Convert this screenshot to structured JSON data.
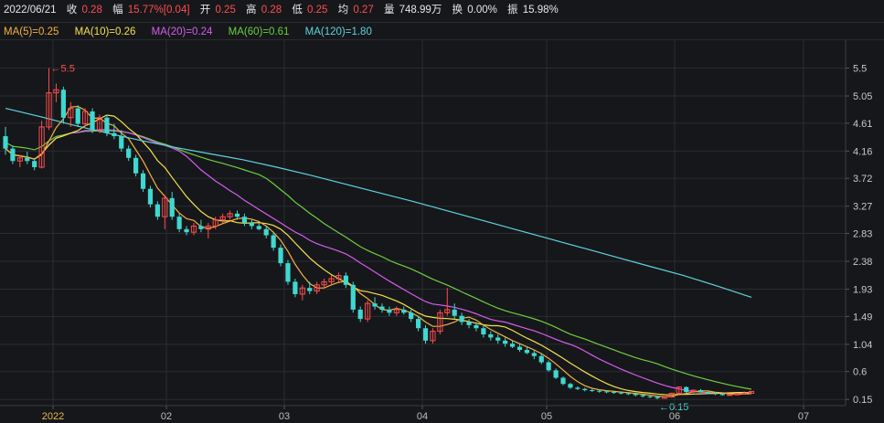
{
  "header": {
    "date": "2022/06/21",
    "close_label": "收",
    "close": "0.28",
    "change_label": "幅",
    "change": "15.77%[0.04]",
    "open_label": "开",
    "open": "0.25",
    "high_label": "高",
    "high": "0.28",
    "low_label": "低",
    "low": "0.25",
    "avg_label": "均",
    "avg": "0.27",
    "volume_label": "量",
    "volume": "748.99万",
    "turnover_label": "换",
    "turnover": "0.00%",
    "amplitude_label": "振",
    "amplitude": "15.98%"
  },
  "ma_legend": [
    {
      "label": "MA(5)=0.25",
      "color": "#f5b041"
    },
    {
      "label": "MA(10)=0.26",
      "color": "#f4e04d"
    },
    {
      "label": "MA(20)=0.24",
      "color": "#d65cf0"
    },
    {
      "label": "MA(60)=0.61",
      "color": "#6ccf3f"
    },
    {
      "label": "MA(120)=1.80",
      "color": "#5fd3e0"
    }
  ],
  "colors": {
    "up": "#ff4d4f",
    "down": "#3fd8d0",
    "grid": "#2a2c31",
    "axis_text": "#c8c8c8",
    "month_label_year": "#e8b84a",
    "month_label": "#bdbdbd"
  },
  "chart_data": {
    "type": "candlestick",
    "y_ticks": [
      "5.5",
      "5.05",
      "4.61",
      "4.16",
      "3.72",
      "3.27",
      "2.83",
      "2.38",
      "1.93",
      "1.49",
      "1.04",
      "0.6",
      "0.15"
    ],
    "ylim": [
      0.05,
      5.95
    ],
    "x_labels": [
      "2022",
      "02",
      "03",
      "04",
      "05",
      "06",
      "07"
    ],
    "annotations": {
      "high": "5.5",
      "low": "0.15"
    },
    "ohlc": [
      [
        4.4,
        4.55,
        4.1,
        4.2
      ],
      [
        4.2,
        4.25,
        3.95,
        4.0
      ],
      [
        4.0,
        4.1,
        3.9,
        4.05
      ],
      [
        4.05,
        4.15,
        3.95,
        4.0
      ],
      [
        4.0,
        4.05,
        3.85,
        3.9
      ],
      [
        3.9,
        4.65,
        3.88,
        4.55
      ],
      [
        4.55,
        5.5,
        4.5,
        5.1
      ],
      [
        5.1,
        5.25,
        4.95,
        5.15
      ],
      [
        5.15,
        5.2,
        4.6,
        4.7
      ],
      [
        4.7,
        4.95,
        4.55,
        4.85
      ],
      [
        4.85,
        4.9,
        4.55,
        4.6
      ],
      [
        4.6,
        4.85,
        4.55,
        4.8
      ],
      [
        4.8,
        4.85,
        4.45,
        4.5
      ],
      [
        4.5,
        4.75,
        4.45,
        4.7
      ],
      [
        4.7,
        4.75,
        4.4,
        4.45
      ],
      [
        4.45,
        4.6,
        4.35,
        4.4
      ],
      [
        4.4,
        4.5,
        4.15,
        4.2
      ],
      [
        4.2,
        4.25,
        4.0,
        4.05
      ],
      [
        4.05,
        4.1,
        3.75,
        3.8
      ],
      [
        3.8,
        3.85,
        3.5,
        3.55
      ],
      [
        3.55,
        3.6,
        3.25,
        3.3
      ],
      [
        3.3,
        3.35,
        3.05,
        3.1
      ],
      [
        3.1,
        3.45,
        2.9,
        3.4
      ],
      [
        3.4,
        3.5,
        3.05,
        3.1
      ],
      [
        3.1,
        3.15,
        2.85,
        2.9
      ],
      [
        2.9,
        2.95,
        2.8,
        2.85
      ],
      [
        2.85,
        3.0,
        2.8,
        2.95
      ],
      [
        2.95,
        3.05,
        2.85,
        2.9
      ],
      [
        2.9,
        3.0,
        2.75,
        2.95
      ],
      [
        2.95,
        3.1,
        2.9,
        3.05
      ],
      [
        3.05,
        3.15,
        3.0,
        3.1
      ],
      [
        3.1,
        3.2,
        3.05,
        3.15
      ],
      [
        3.15,
        3.2,
        3.05,
        3.1
      ],
      [
        3.1,
        3.15,
        2.95,
        3.0
      ],
      [
        3.0,
        3.05,
        2.9,
        2.95
      ],
      [
        2.95,
        3.0,
        2.88,
        2.9
      ],
      [
        2.9,
        2.95,
        2.75,
        2.8
      ],
      [
        2.8,
        2.85,
        2.55,
        2.6
      ],
      [
        2.6,
        2.65,
        2.3,
        2.35
      ],
      [
        2.35,
        2.4,
        2.0,
        2.05
      ],
      [
        2.05,
        2.1,
        1.8,
        1.85
      ],
      [
        1.85,
        2.0,
        1.75,
        1.95
      ],
      [
        1.95,
        2.05,
        1.85,
        1.9
      ],
      [
        1.9,
        2.05,
        1.85,
        2.0
      ],
      [
        2.0,
        2.1,
        1.95,
        2.05
      ],
      [
        2.05,
        2.15,
        2.0,
        2.1
      ],
      [
        2.1,
        2.2,
        2.05,
        2.15
      ],
      [
        2.15,
        2.2,
        1.95,
        2.0
      ],
      [
        2.0,
        2.05,
        1.55,
        1.6
      ],
      [
        1.6,
        1.65,
        1.4,
        1.45
      ],
      [
        1.45,
        1.75,
        1.4,
        1.7
      ],
      [
        1.7,
        1.8,
        1.6,
        1.65
      ],
      [
        1.65,
        1.7,
        1.55,
        1.6
      ],
      [
        1.6,
        1.65,
        1.5,
        1.55
      ],
      [
        1.55,
        1.65,
        1.5,
        1.6
      ],
      [
        1.6,
        1.65,
        1.52,
        1.55
      ],
      [
        1.55,
        1.6,
        1.4,
        1.45
      ],
      [
        1.45,
        1.5,
        1.25,
        1.3
      ],
      [
        1.3,
        1.35,
        1.05,
        1.1
      ],
      [
        1.1,
        1.3,
        1.05,
        1.25
      ],
      [
        1.25,
        1.6,
        1.2,
        1.55
      ],
      [
        1.55,
        1.95,
        1.5,
        1.6
      ],
      [
        1.6,
        1.7,
        1.45,
        1.5
      ],
      [
        1.5,
        1.55,
        1.35,
        1.4
      ],
      [
        1.4,
        1.45,
        1.3,
        1.35
      ],
      [
        1.35,
        1.4,
        1.25,
        1.3
      ],
      [
        1.3,
        1.35,
        1.15,
        1.2
      ],
      [
        1.2,
        1.25,
        1.1,
        1.15
      ],
      [
        1.15,
        1.2,
        1.05,
        1.1
      ],
      [
        1.1,
        1.15,
        1.0,
        1.05
      ],
      [
        1.05,
        1.1,
        0.98,
        1.0
      ],
      [
        1.0,
        1.05,
        0.92,
        0.95
      ],
      [
        0.95,
        1.0,
        0.88,
        0.9
      ],
      [
        0.9,
        0.95,
        0.8,
        0.85
      ],
      [
        0.85,
        0.9,
        0.72,
        0.75
      ],
      [
        0.75,
        0.78,
        0.6,
        0.62
      ],
      [
        0.62,
        0.65,
        0.48,
        0.5
      ],
      [
        0.5,
        0.52,
        0.38,
        0.4
      ],
      [
        0.4,
        0.42,
        0.32,
        0.34
      ],
      [
        0.34,
        0.36,
        0.3,
        0.32
      ],
      [
        0.32,
        0.34,
        0.28,
        0.3
      ],
      [
        0.3,
        0.32,
        0.27,
        0.29
      ],
      [
        0.29,
        0.31,
        0.26,
        0.28
      ],
      [
        0.28,
        0.3,
        0.25,
        0.27
      ],
      [
        0.27,
        0.29,
        0.24,
        0.26
      ],
      [
        0.26,
        0.28,
        0.23,
        0.25
      ],
      [
        0.25,
        0.27,
        0.22,
        0.24
      ],
      [
        0.24,
        0.26,
        0.2,
        0.22
      ],
      [
        0.22,
        0.24,
        0.18,
        0.2
      ],
      [
        0.2,
        0.22,
        0.17,
        0.19
      ],
      [
        0.19,
        0.21,
        0.15,
        0.17
      ],
      [
        0.17,
        0.2,
        0.16,
        0.19
      ],
      [
        0.19,
        0.26,
        0.18,
        0.25
      ],
      [
        0.25,
        0.36,
        0.24,
        0.35
      ],
      [
        0.35,
        0.36,
        0.25,
        0.27
      ],
      [
        0.27,
        0.31,
        0.25,
        0.3
      ],
      [
        0.3,
        0.32,
        0.26,
        0.27
      ],
      [
        0.27,
        0.29,
        0.24,
        0.25
      ],
      [
        0.25,
        0.27,
        0.22,
        0.24
      ],
      [
        0.24,
        0.26,
        0.21,
        0.22
      ],
      [
        0.22,
        0.24,
        0.21,
        0.23
      ],
      [
        0.23,
        0.25,
        0.22,
        0.24
      ],
      [
        0.24,
        0.28,
        0.24,
        0.25
      ],
      [
        0.25,
        0.28,
        0.25,
        0.28
      ]
    ],
    "ma120": [
      4.85,
      4.72,
      4.58,
      4.45,
      4.33,
      4.22,
      4.12,
      4.02,
      3.9,
      3.77,
      3.63,
      3.49,
      3.35,
      3.2,
      3.05,
      2.9,
      2.75,
      2.6,
      2.45,
      2.3,
      2.15,
      1.98,
      1.8
    ]
  }
}
